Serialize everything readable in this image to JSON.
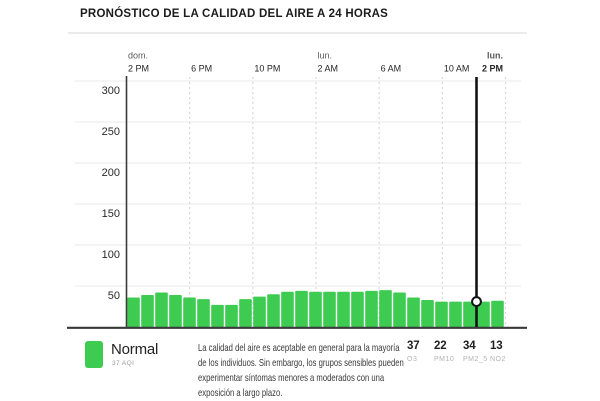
{
  "title": "PRONÓSTICO DE LA CALIDAD DEL AIRE A 24 HORAS",
  "chart_data": {
    "type": "bar",
    "title": "PRONÓSTICO DE LA CALIDAD DEL AIRE A 24 HORAS",
    "ylabel": "AQI",
    "ylim": [
      0,
      305
    ],
    "grid": true,
    "y_ticks": [
      50,
      100,
      150,
      200,
      250,
      300
    ],
    "x_ticks": [
      {
        "day": "dom.",
        "time": "2 PM",
        "bold": false
      },
      {
        "day": "",
        "time": "6 PM",
        "bold": false
      },
      {
        "day": "",
        "time": "10 PM",
        "bold": false
      },
      {
        "day": "lun.",
        "time": "2 AM",
        "bold": false
      },
      {
        "day": "",
        "time": "6 AM",
        "bold": false
      },
      {
        "day": "",
        "time": "10 AM",
        "bold": false
      },
      {
        "day": "lun.",
        "time": "2 PM",
        "bold": true
      }
    ],
    "bar_values_aqi": [
      36,
      39,
      42,
      39,
      36,
      34,
      27,
      27,
      34,
      37,
      40,
      43,
      44,
      43,
      43,
      43,
      43,
      44,
      45,
      42,
      36,
      33,
      31,
      31,
      31,
      31,
      32
    ],
    "bar_color": "#3ecb52",
    "marker": {
      "boundary_index": 25,
      "value_aqi": 31
    }
  },
  "legend": {
    "category": "Normal",
    "aqi_label": "37 AQI",
    "swatch_color": "#3ecb52",
    "description_lines": [
      "La calidad del aire es aceptable en general para la mayoría",
      "de los individuos. Sin embargo, los grupos sensibles pueden",
      "experimentar síntomas menores a moderados con una",
      "exposición a largo plazo."
    ]
  },
  "pollutants": [
    {
      "value": "37",
      "label": "O3"
    },
    {
      "value": "22",
      "label": "PM10"
    },
    {
      "value": "34",
      "label": "PM2_5"
    },
    {
      "value": "13",
      "label": "NO2"
    }
  ],
  "colors": {
    "grid": "#ededed",
    "dash": "#d7d7d7",
    "axis": "#3a3a3a",
    "indicator": "#141414"
  }
}
